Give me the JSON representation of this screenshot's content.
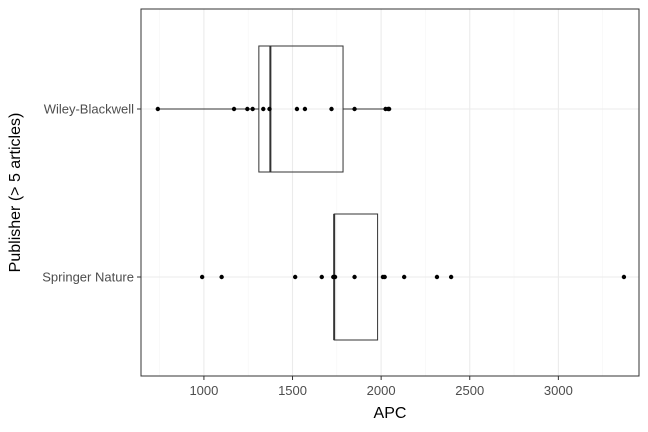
{
  "chart_data": {
    "type": "boxplot",
    "orientation": "horizontal",
    "title": "",
    "xlabel": "APC",
    "ylabel": "Publisher (> 5 articles)",
    "xlim": [
      645,
      3455
    ],
    "x_ticks": [
      1000,
      1500,
      2000,
      2500,
      3000
    ],
    "x_tick_labels": [
      "1000",
      "1500",
      "2000",
      "2500",
      "3000"
    ],
    "grid": true,
    "legend": "none",
    "categories": [
      "Wiley-Blackwell",
      "Springer Nature"
    ],
    "series": [
      {
        "category": "Wiley-Blackwell",
        "whisker_low": 740,
        "q1": 1310,
        "median": 1375,
        "q3": 1785,
        "whisker_high": 2045,
        "points": [
          740,
          1170,
          1245,
          1275,
          1335,
          1370,
          1525,
          1570,
          1720,
          1850,
          2025,
          2040,
          2045
        ]
      },
      {
        "category": "Springer Nature",
        "whisker_low": 1735,
        "q1": 1735,
        "median": 1735,
        "q3": 1980,
        "whisker_high": 1980,
        "points": [
          990,
          1100,
          1515,
          1665,
          1730,
          1740,
          1850,
          2010,
          2020,
          2130,
          2315,
          2395,
          3370
        ]
      }
    ],
    "colors": {
      "panel_border": "#333333",
      "grid_major": "#ebebeb",
      "grid_minor": "#f5f5f5",
      "box_line": "#333333",
      "point": "#000000"
    }
  }
}
